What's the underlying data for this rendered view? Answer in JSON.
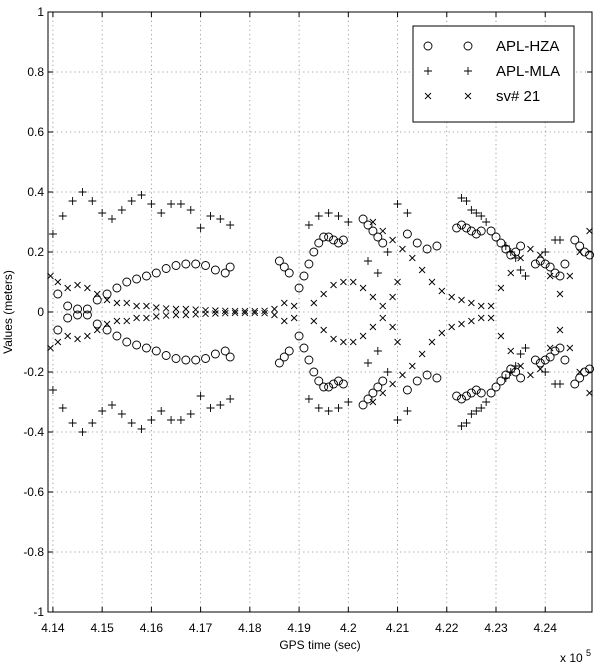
{
  "chart_data": {
    "type": "scatter",
    "title": "",
    "xlabel": "GPS time (sec)",
    "ylabel": "Values (meters)",
    "x_multiplier_label": "x 10",
    "x_multiplier_exponent": "5",
    "xlim": [
      413900,
      424950
    ],
    "ylim": [
      -1,
      1
    ],
    "x_ticks": [
      414000,
      415000,
      416000,
      417000,
      418000,
      419000,
      420000,
      421000,
      422000,
      423000,
      424000
    ],
    "x_tick_labels": [
      "4.14",
      "4.15",
      "4.16",
      "4.17",
      "4.18",
      "4.19",
      "4.2",
      "4.21",
      "4.22",
      "4.23",
      "4.24"
    ],
    "y_ticks": [
      -1,
      -0.8,
      -0.6,
      -0.4,
      -0.2,
      0,
      0.2,
      0.4,
      0.6,
      0.8,
      1
    ],
    "y_tick_labels": [
      "-1",
      "-0.8",
      "-0.6",
      "-0.4",
      "-0.2",
      "0",
      "0.2",
      "0.4",
      "0.6",
      "0.8",
      "1"
    ],
    "grid": true,
    "legend_position": "top-right",
    "series": [
      {
        "name": "APL-HZA",
        "marker": "circle",
        "symmetric": true,
        "segments": [
          {
            "x": [
              414100,
              414300,
              414500,
              414700,
              414900,
              415100,
              415300,
              415500,
              415700,
              415900,
              416100,
              416300,
              416500,
              416700,
              416900,
              417100,
              417300,
              417500,
              417600
            ],
            "y": [
              0.06,
              0.02,
              -0.01,
              0.01,
              0.04,
              0.06,
              0.08,
              0.1,
              0.11,
              0.12,
              0.13,
              0.145,
              0.155,
              0.16,
              0.16,
              0.155,
              0.14,
              0.13,
              0.15
            ]
          },
          {
            "x": [
              418600,
              418700,
              418800
            ],
            "y": [
              0.17,
              0.15,
              0.13
            ]
          },
          {
            "x": [
              419000,
              419100,
              419200,
              419300,
              419400,
              419500,
              419600,
              419700,
              419800,
              419900
            ],
            "y": [
              0.08,
              0.12,
              0.16,
              0.2,
              0.23,
              0.25,
              0.25,
              0.24,
              0.23,
              0.24
            ]
          },
          {
            "x": [
              420300,
              420400,
              420500,
              420600,
              420700
            ],
            "y": [
              0.31,
              0.29,
              0.27,
              0.25,
              0.23
            ]
          },
          {
            "x": [
              421200,
              421400,
              421600,
              421800
            ],
            "y": [
              0.26,
              0.23,
              0.21,
              0.22
            ]
          },
          {
            "x": [
              422200,
              422300,
              422400,
              422500,
              422600,
              422700
            ],
            "y": [
              0.28,
              0.29,
              0.28,
              0.27,
              0.26,
              0.27
            ]
          },
          {
            "x": [
              422900,
              423000,
              423100,
              423200,
              423300,
              423400,
              423500
            ],
            "y": [
              0.27,
              0.25,
              0.23,
              0.21,
              0.19,
              0.2,
              0.22
            ]
          },
          {
            "x": [
              423800,
              423900,
              424000,
              424100,
              424200,
              424300,
              424400,
              424600,
              424700,
              424800,
              424900
            ],
            "y": [
              0.16,
              0.17,
              0.16,
              0.15,
              0.13,
              0.12,
              0.16,
              0.24,
              0.22,
              0.2,
              0.19
            ]
          }
        ]
      },
      {
        "name": "APL-MLA",
        "marker": "plus",
        "symmetric": true,
        "segments": [
          {
            "x": [
              414000,
              414200,
              414400,
              414600,
              414800,
              415000,
              415200,
              415400,
              415600,
              415800,
              416000,
              416200,
              416400,
              416600,
              416800,
              417000,
              417200,
              417400,
              417600
            ],
            "y": [
              0.26,
              0.32,
              0.37,
              0.4,
              0.37,
              0.33,
              0.31,
              0.34,
              0.37,
              0.39,
              0.36,
              0.33,
              0.36,
              0.36,
              0.34,
              0.28,
              0.32,
              0.31,
              0.29
            ]
          },
          {
            "x": [
              419200,
              419400,
              419600,
              419800,
              420000,
              420400,
              420600,
              420800,
              421000,
              421200
            ],
            "y": [
              0.29,
              0.32,
              0.33,
              0.32,
              0.3,
              0.17,
              0.13,
              0.2,
              0.36,
              0.33
            ]
          },
          {
            "x": [
              422300,
              422400,
              422500,
              422600,
              422700,
              422800
            ],
            "y": [
              0.38,
              0.37,
              0.34,
              0.33,
              0.32,
              0.3
            ]
          },
          {
            "x": [
              423200,
              423300,
              423400,
              423500,
              423600,
              424000,
              424200,
              424300
            ],
            "y": [
              0.22,
              0.2,
              0.18,
              0.14,
              0.12,
              0.2,
              0.24,
              0.24
            ]
          }
        ]
      },
      {
        "name": "sv# 21",
        "marker": "x",
        "symmetric": true,
        "segments": [
          {
            "x": [
              413950,
              414100,
              414300,
              414500,
              414700,
              414900,
              415100,
              415300,
              415500,
              415700,
              415900,
              416100,
              416300,
              416500,
              416700,
              416900,
              417100,
              417300,
              417500,
              417700,
              417900,
              418100,
              418300,
              418500,
              418700,
              418900
            ],
            "y": [
              0.12,
              0.1,
              0.08,
              0.09,
              0.08,
              0.06,
              0.04,
              0.03,
              0.03,
              0.02,
              0.02,
              0.015,
              0.012,
              0.01,
              0.01,
              0.008,
              0.006,
              0.005,
              0.004,
              0.003,
              0.003,
              0.003,
              0.004,
              0.01,
              0.03,
              0.02
            ]
          },
          {
            "x": [
              419300,
              419500,
              419700,
              419900,
              420100,
              420300,
              420500,
              420700,
              420900,
              421000
            ],
            "y": [
              0.03,
              0.06,
              0.09,
              0.1,
              0.1,
              0.08,
              0.05,
              0.02,
              0.05,
              0.1
            ]
          },
          {
            "x": [
              420500,
              420700,
              420900,
              421100,
              421300,
              421500,
              421700,
              421900,
              422100,
              422300,
              422500,
              422700,
              422900
            ],
            "y": [
              0.3,
              0.27,
              0.24,
              0.21,
              0.18,
              0.14,
              0.1,
              0.07,
              0.05,
              0.04,
              0.03,
              0.02,
              0.02
            ]
          },
          {
            "x": [
              423100,
              423300,
              423500,
              423700,
              423900,
              424100,
              424300,
              424500,
              424700,
              424900
            ],
            "y": [
              0.08,
              0.13,
              0.18,
              0.21,
              0.19,
              0.12,
              0.06,
              0.12,
              0.2,
              0.27
            ]
          }
        ]
      }
    ]
  }
}
